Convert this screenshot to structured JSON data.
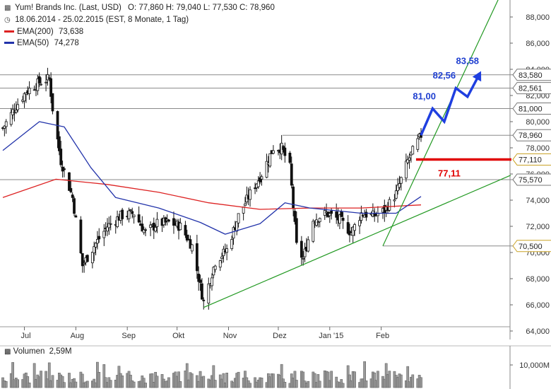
{
  "header": {
    "title": "Yum! Brands Inc. (Last, USD)",
    "ohlc": "O: 77,860  H: 79,040  L: 77,530  C: 78,960",
    "period": "18.06.2014 - 25.02.2015 (EST, 8 Monate, 1 Tag)",
    "ema200_label": "EMA(200)",
    "ema200_value": "73,638",
    "ema50_label": "EMA(50)",
    "ema50_value": "74,278"
  },
  "colors": {
    "ema200": "#dd2222",
    "ema50": "#2233aa",
    "trend": "#229922",
    "projection": "#1f3fe0",
    "support": "#e00000"
  },
  "volume": {
    "label": "Volumen",
    "value": "2,59M",
    "axis_label": "10,000M"
  },
  "chart_data": {
    "type": "candlestick",
    "x_range": [
      "2014-06-18",
      "2015-02-25"
    ],
    "months": [
      "Jul",
      "Aug",
      "Sep",
      "Okt",
      "Nov",
      "Dez",
      "Jan '15",
      "Feb"
    ],
    "ylim": [
      64,
      90
    ],
    "yticks": [
      "64,000",
      "66,000",
      "68,000",
      "70,000",
      "72,000",
      "74,000",
      "76,000",
      "78,000",
      "80,000",
      "82,000",
      "84,000",
      "86,000",
      "88,000"
    ],
    "price_path": [
      {
        "d": "2014-06-18",
        "v": 79.5
      },
      {
        "d": "2014-06-25",
        "v": 81.0
      },
      {
        "d": "2014-07-02",
        "v": 82.3
      },
      {
        "d": "2014-07-10",
        "v": 83.0
      },
      {
        "d": "2014-07-16",
        "v": 83.3
      },
      {
        "d": "2014-07-18",
        "v": 81.0
      },
      {
        "d": "2014-07-23",
        "v": 77.0
      },
      {
        "d": "2014-07-30",
        "v": 74.2
      },
      {
        "d": "2014-08-05",
        "v": 69.0
      },
      {
        "d": "2014-08-12",
        "v": 70.5
      },
      {
        "d": "2014-08-20",
        "v": 72.0
      },
      {
        "d": "2014-08-28",
        "v": 72.8
      },
      {
        "d": "2014-09-05",
        "v": 73.0
      },
      {
        "d": "2014-09-12",
        "v": 71.5
      },
      {
        "d": "2014-09-19",
        "v": 72.2
      },
      {
        "d": "2014-09-26",
        "v": 72.3
      },
      {
        "d": "2014-10-03",
        "v": 72.0
      },
      {
        "d": "2014-10-10",
        "v": 70.5
      },
      {
        "d": "2014-10-17",
        "v": 66.2
      },
      {
        "d": "2014-10-24",
        "v": 69.3
      },
      {
        "d": "2014-10-31",
        "v": 70.2
      },
      {
        "d": "2014-11-07",
        "v": 72.8
      },
      {
        "d": "2014-11-14",
        "v": 74.5
      },
      {
        "d": "2014-11-21",
        "v": 76.0
      },
      {
        "d": "2014-11-28",
        "v": 78.0
      },
      {
        "d": "2014-12-03",
        "v": 78.0
      },
      {
        "d": "2014-12-08",
        "v": 76.5
      },
      {
        "d": "2014-12-12",
        "v": 70.5
      },
      {
        "d": "2014-12-16",
        "v": 69.5
      },
      {
        "d": "2014-12-22",
        "v": 72.5
      },
      {
        "d": "2014-12-30",
        "v": 73.0
      },
      {
        "d": "2015-01-07",
        "v": 72.5
      },
      {
        "d": "2015-01-14",
        "v": 71.5
      },
      {
        "d": "2015-01-20",
        "v": 73.0
      },
      {
        "d": "2015-01-27",
        "v": 72.8
      },
      {
        "d": "2015-02-03",
        "v": 73.2
      },
      {
        "d": "2015-02-10",
        "v": 74.5
      },
      {
        "d": "2015-02-17",
        "v": 77.0
      },
      {
        "d": "2015-02-25",
        "v": 78.96
      }
    ],
    "ema200": [
      {
        "d": "2014-06-18",
        "v": 74.2
      },
      {
        "d": "2014-07-20",
        "v": 75.6
      },
      {
        "d": "2014-08-20",
        "v": 75.2
      },
      {
        "d": "2014-09-20",
        "v": 74.6
      },
      {
        "d": "2014-10-20",
        "v": 73.8
      },
      {
        "d": "2014-11-20",
        "v": 73.3
      },
      {
        "d": "2014-12-20",
        "v": 73.4
      },
      {
        "d": "2015-01-20",
        "v": 73.4
      },
      {
        "d": "2015-02-25",
        "v": 73.64
      }
    ],
    "ema50": [
      {
        "d": "2014-06-18",
        "v": 77.8
      },
      {
        "d": "2014-07-10",
        "v": 80.0
      },
      {
        "d": "2014-07-25",
        "v": 79.6
      },
      {
        "d": "2014-08-10",
        "v": 76.5
      },
      {
        "d": "2014-08-25",
        "v": 74.2
      },
      {
        "d": "2014-09-20",
        "v": 73.4
      },
      {
        "d": "2014-10-15",
        "v": 72.3
      },
      {
        "d": "2014-10-30",
        "v": 71.4
      },
      {
        "d": "2014-11-20",
        "v": 72.2
      },
      {
        "d": "2014-12-05",
        "v": 73.8
      },
      {
        "d": "2014-12-20",
        "v": 73.4
      },
      {
        "d": "2015-01-20",
        "v": 73.0
      },
      {
        "d": "2015-02-10",
        "v": 73.0
      },
      {
        "d": "2015-02-25",
        "v": 74.28
      }
    ],
    "horizontal_levels": [
      {
        "value": 83.58,
        "label": "83,580"
      },
      {
        "value": 82.561,
        "label": "82,561"
      },
      {
        "value": 81.0,
        "label": "81,000"
      },
      {
        "value": 78.96,
        "label": "78,960"
      },
      {
        "value": 75.57,
        "label": "75,570"
      }
    ],
    "price_tags": [
      {
        "value": 77.11,
        "label": "77,110"
      },
      {
        "value": 70.5,
        "label": "70,500"
      }
    ],
    "support_label": "77,11",
    "projection": [
      {
        "d": "2015-02-25",
        "v": 78.96
      },
      {
        "d": "2015-03-04",
        "v": 81.0
      },
      {
        "d": "2015-03-11",
        "v": 80.0
      },
      {
        "d": "2015-03-18",
        "v": 82.56
      },
      {
        "d": "2015-03-25",
        "v": 81.9
      },
      {
        "d": "2015-04-01",
        "v": 83.58
      }
    ],
    "projection_labels": [
      {
        "d": "2015-02-27",
        "v": 81.7,
        "text": "81,00"
      },
      {
        "d": "2015-03-11",
        "v": 83.3,
        "text": "82,56"
      },
      {
        "d": "2015-03-25",
        "v": 84.4,
        "text": "83,58"
      }
    ],
    "trendlines": [
      {
        "from": {
          "d": "2014-10-17",
          "v": 65.8
        },
        "to": {
          "d": "2015-04-20",
          "v": 75.9
        }
      },
      {
        "from": {
          "d": "2015-02-02",
          "v": 70.5
        },
        "to": {
          "d": "2015-04-15",
          "v": 90.0
        }
      }
    ],
    "volume_level": 0.25
  }
}
